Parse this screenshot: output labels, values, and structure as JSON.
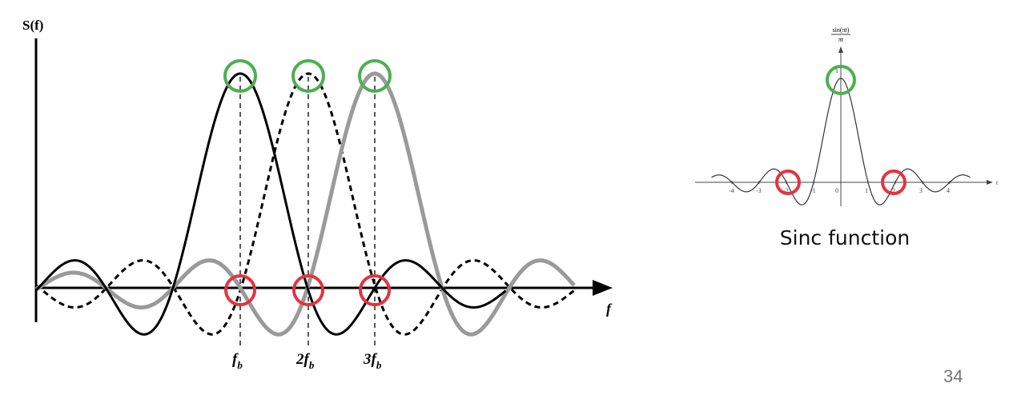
{
  "main_plot": {
    "y_axis_label": "S(f)",
    "x_axis_label": "f",
    "ticks": [
      {
        "coef": "",
        "var": "f",
        "sub": "b"
      },
      {
        "coef": "2",
        "var": "f",
        "sub": "b"
      },
      {
        "coef": "3",
        "var": "f",
        "sub": "b"
      }
    ],
    "series_colors": {
      "first": "#000000",
      "second": "#000000",
      "third": "#9a9a9a"
    },
    "marker_colors": {
      "peak": "#4caf50",
      "zero": "#e5333f"
    }
  },
  "sinc_plot": {
    "y_label_numerator": "sin(πt)",
    "y_label_denominator": "πt",
    "x_axis_label": "t",
    "x_ticks": [
      "-4",
      "-3",
      "-2",
      "-1",
      "0",
      "1",
      "2",
      "3",
      "4"
    ],
    "peak_label": "1"
  },
  "caption": "Sinc function",
  "page_number": "34"
}
